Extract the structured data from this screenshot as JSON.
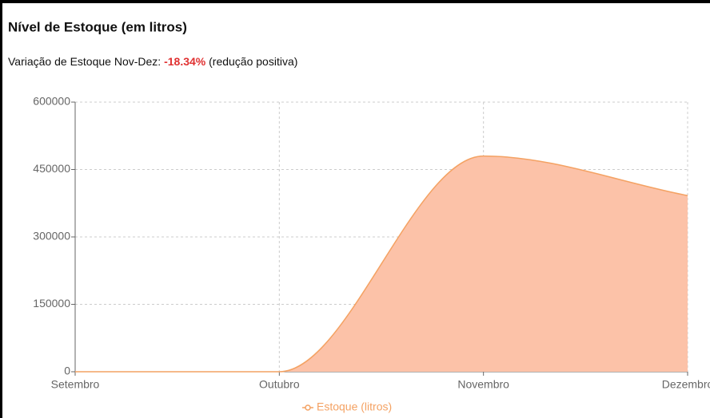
{
  "chart_data": {
    "type": "area",
    "title": "Nível de Estoque (em litros)",
    "subtitle": {
      "prefix": "Variação de Estoque Nov-Dez:",
      "highlight": "-18.34%",
      "suffix": "(redução positiva)",
      "highlight_color": "#e03131"
    },
    "categories": [
      "Setembro",
      "Outubro",
      "Novembro",
      "Dezembro"
    ],
    "series": [
      {
        "name": "Estoque (litros)",
        "color": "#f4a263",
        "fill": "#fcc2a8",
        "values": [
          0,
          0,
          480000,
          392000
        ]
      }
    ],
    "ylim": [
      0,
      600000
    ],
    "yticks": [
      0,
      150000,
      300000,
      450000,
      600000
    ],
    "grid": true,
    "legend": "bottom"
  }
}
